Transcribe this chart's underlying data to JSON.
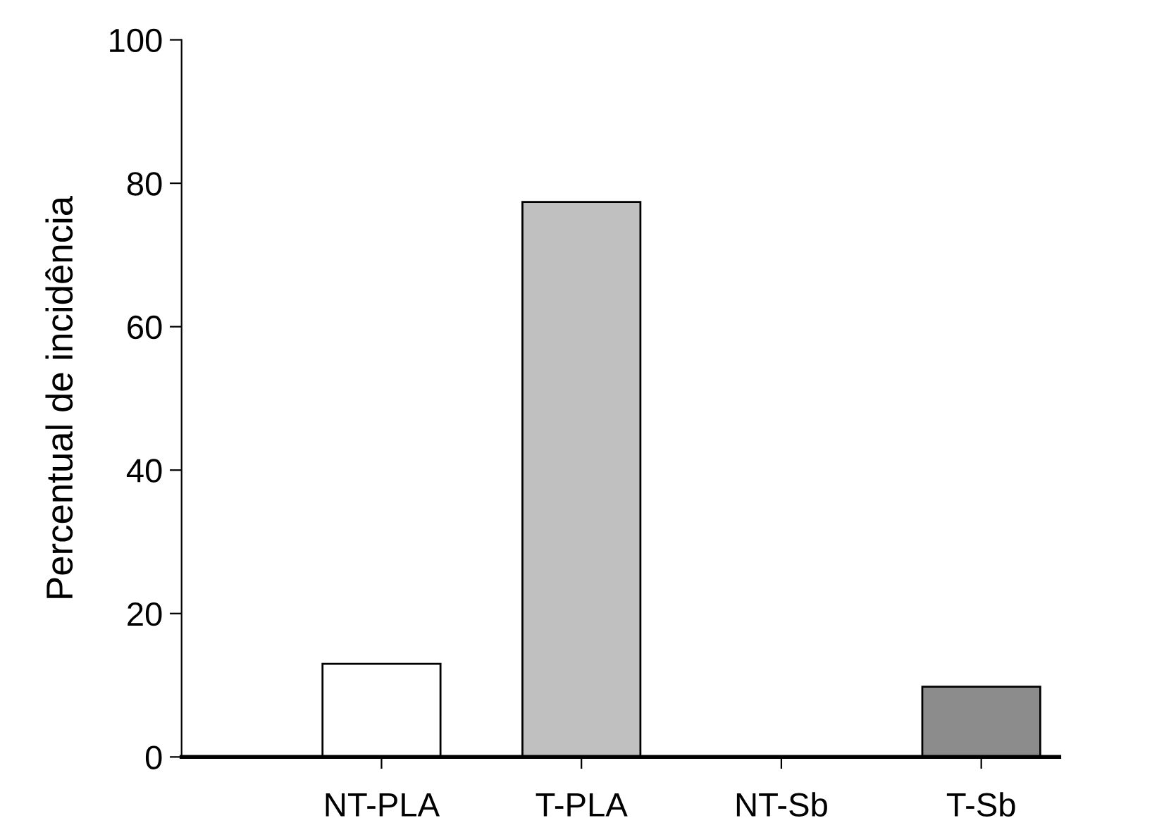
{
  "chart_data": {
    "type": "bar",
    "ylabel": "Percentual de incidência",
    "categories": [
      "NT-PLA",
      "T-PLA",
      "NT-Sb",
      "T-Sb"
    ],
    "values": [
      13,
      77.4,
      0,
      9.8
    ],
    "colors": [
      "#ffffff",
      "#c0c0c0",
      null,
      "#8c8c8c"
    ],
    "ylim": [
      0,
      100
    ],
    "yticks": [
      0,
      20,
      40,
      60,
      80,
      100
    ],
    "grid": false
  }
}
